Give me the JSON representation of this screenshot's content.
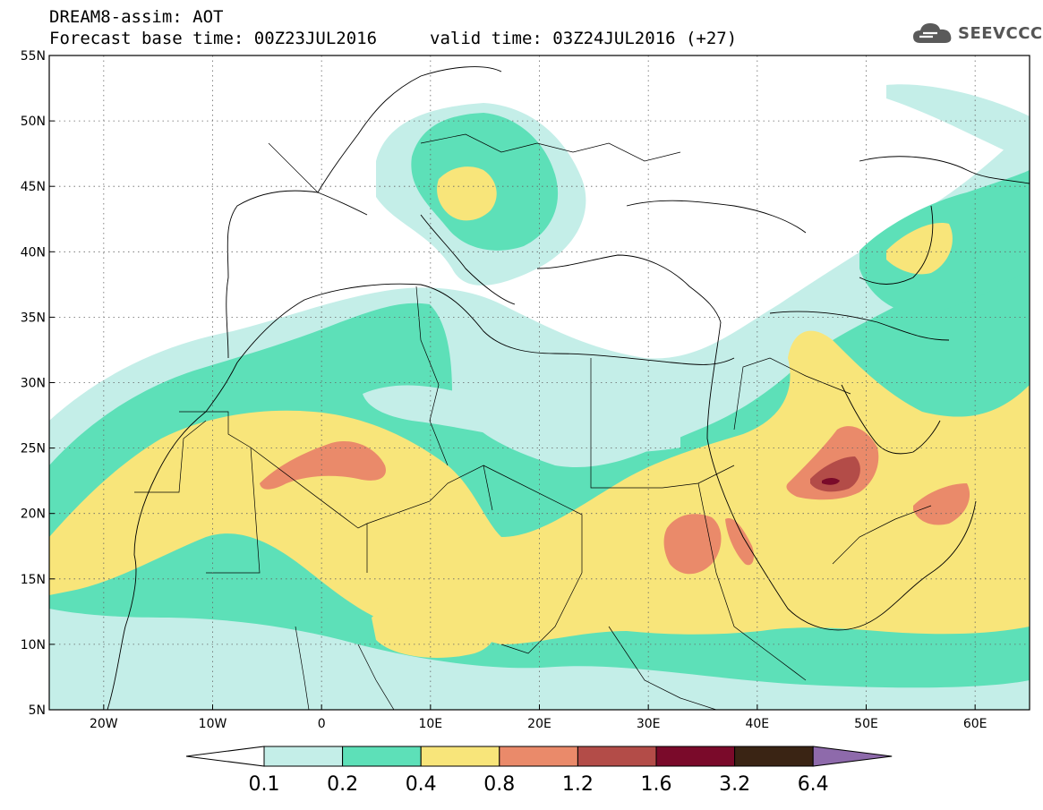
{
  "header": {
    "title": "DREAM8-assim: AOT",
    "base_time": "Forecast base time: 00Z23JUL2016",
    "valid_time": "valid time: 03Z24JUL2016 (+27)"
  },
  "logo": {
    "text": "SEEVCCC",
    "icon": "cloud-logo-icon",
    "color": "#555555"
  },
  "map": {
    "lon_range": [
      -25,
      65
    ],
    "lat_range": [
      5,
      55
    ],
    "lat_ticks": [
      "5N",
      "10N",
      "15N",
      "20N",
      "25N",
      "30N",
      "35N",
      "40N",
      "45N",
      "50N",
      "55N"
    ],
    "lon_ticks": [
      "20W",
      "10W",
      "0",
      "10E",
      "20E",
      "30E",
      "40E",
      "50E",
      "60E"
    ],
    "gridlines": "dotted"
  },
  "colorbar": {
    "labels": [
      "0.1",
      "0.2",
      "0.4",
      "0.8",
      "1.2",
      "1.6",
      "3.2",
      "6.4"
    ],
    "colors": [
      "#ffffff",
      "#c4eee8",
      "#5de0b8",
      "#f8e57a",
      "#ea8a6a",
      "#b34c48",
      "#7a0a2a",
      "#3a2414",
      "#8e6aab"
    ]
  },
  "aot_levels": {
    "l1": "#c4eee8",
    "l2": "#5de0b8",
    "l3": "#f8e57a",
    "l4": "#ea8a6a",
    "l5": "#b34c48",
    "l6": "#7a0a2a"
  }
}
